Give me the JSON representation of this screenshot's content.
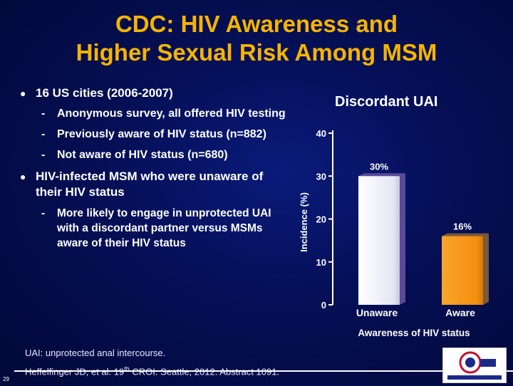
{
  "slide": {
    "title_line1": "CDC: HIV Awareness and",
    "title_line2": "Higher Sexual Risk Among MSM",
    "bullets": [
      {
        "text": "16 US cities (2006-2007)",
        "subs": [
          "Anonymous survey, all offered HIV testing",
          "Previously aware of HIV status (n=882)",
          "Not aware of HIV status (n=680)"
        ]
      },
      {
        "text": "HIV-infected MSM who were unaware of their HIV status",
        "subs": [
          "More likely to engage in unprotected UAI with a discordant partner versus MSMs aware of their HIV status"
        ]
      }
    ],
    "footnote1": "UAI: unprotected anal intercourse.",
    "footnote2_pre": "Heffelfinger JD, et al. 19",
    "footnote2_sup": "th",
    "footnote2_post": " CROI. Seattle, 2012. Abstract 1091.",
    "page_number": "29"
  },
  "colors": {
    "title": "#f5b400",
    "bar_unaware": "#f4f4ff",
    "bar_aware": "#f79a1e",
    "logo_accent": "#c8102e"
  },
  "chart_data": {
    "type": "bar",
    "title": "Discordant UAI",
    "categories": [
      "Unaware",
      "Aware"
    ],
    "values": [
      30,
      16
    ],
    "value_labels": [
      "30%",
      "16%"
    ],
    "ylabel": "Incidence (%)",
    "xlabel": "Awareness of HIV status",
    "ylim": [
      0,
      40
    ],
    "yticks": [
      "0",
      "10",
      "20",
      "30",
      "40"
    ]
  }
}
